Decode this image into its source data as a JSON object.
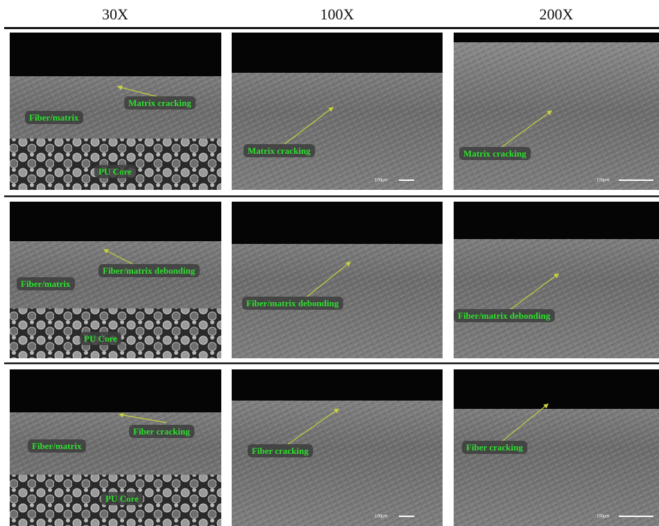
{
  "columns": [
    "30X",
    "100X",
    "200X"
  ],
  "rows": [
    {
      "panels": [
        {
          "labels": [
            "Matrix cracking",
            "Fiber/matrix",
            "PU Core"
          ]
        },
        {
          "labels": [
            "Matrix cracking"
          ],
          "scale": "100μm"
        },
        {
          "labels": [
            "Matrix cracking"
          ],
          "scale": "100μm"
        }
      ]
    },
    {
      "panels": [
        {
          "labels": [
            "Fiber/matrix debonding",
            "Fiber/matrix",
            "PU Core"
          ]
        },
        {
          "labels": [
            "Fiber/matrix debonding"
          ]
        },
        {
          "labels": [
            "Fiber/matrix debonding"
          ]
        }
      ]
    },
    {
      "panels": [
        {
          "labels": [
            "Fiber cracking",
            "Fiber/matrix",
            "PU Core"
          ]
        },
        {
          "labels": [
            "Fiber cracking"
          ],
          "scale": "100μm"
        },
        {
          "labels": [
            "Fiber cracking"
          ],
          "scale": "100μm"
        }
      ]
    }
  ]
}
